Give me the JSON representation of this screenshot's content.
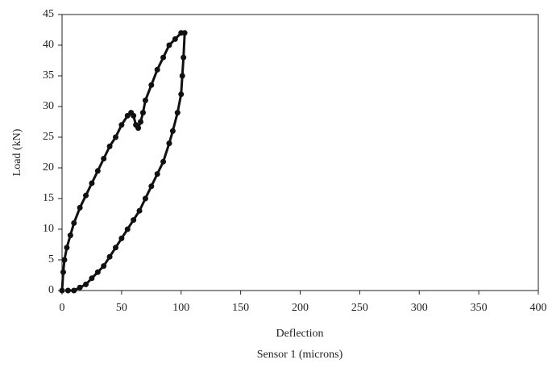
{
  "chart_data": {
    "type": "line",
    "x_label": "Deflection",
    "x_label_2": "Sensor 1 (microns)",
    "y_label": "Load (kN)",
    "xlim": [
      0,
      400
    ],
    "xticks": [
      0,
      50,
      100,
      150,
      200,
      250,
      300,
      350,
      400
    ],
    "ylim": [
      0,
      45
    ],
    "yticks": [
      0,
      5,
      10,
      15,
      20,
      25,
      30,
      35,
      40,
      45
    ],
    "grid": false,
    "series": [
      {
        "color": "#111111",
        "x": [
          0,
          1,
          2,
          4,
          7,
          10,
          15,
          20,
          25,
          30,
          35,
          40,
          45,
          50,
          55,
          58,
          60,
          62,
          64,
          66,
          68,
          70,
          75,
          80,
          85,
          90,
          95,
          100,
          103,
          102,
          101,
          100,
          97,
          93,
          90,
          85,
          80,
          75,
          70,
          65,
          60,
          55,
          50,
          45,
          40,
          35,
          30,
          25,
          20,
          15,
          10,
          5
        ],
        "values": [
          0,
          3,
          5,
          7,
          9,
          11,
          13.5,
          15.5,
          17.5,
          19.5,
          21.5,
          23.5,
          25,
          27,
          28.5,
          29,
          28.5,
          27,
          26.5,
          27.5,
          29,
          31,
          33.5,
          36,
          38,
          40,
          41,
          42,
          42,
          38,
          35,
          32,
          29,
          26,
          24,
          21,
          19,
          17,
          15,
          13,
          11.5,
          10,
          8.5,
          7,
          5.5,
          4,
          3,
          2,
          1,
          0.5,
          0,
          0
        ]
      }
    ]
  }
}
